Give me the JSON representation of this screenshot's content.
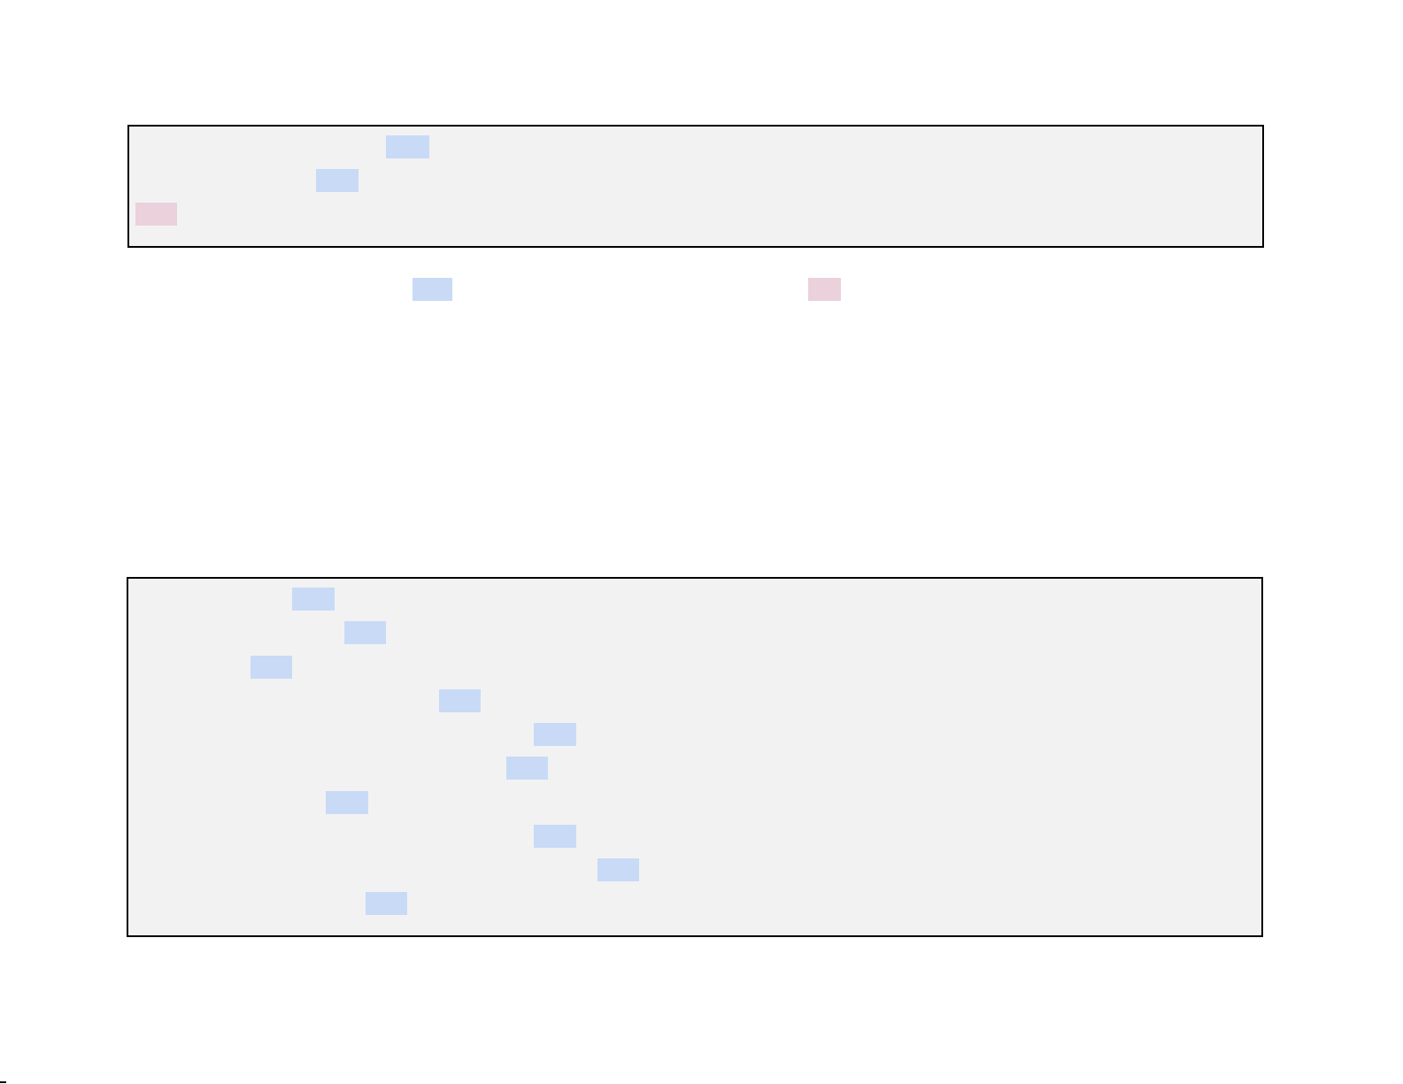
{
  "colors": {
    "page_background": "#ffffff",
    "panel_background": "#f2f2f2",
    "panel_border": "#000000",
    "highlight_blue": "#c8daf6",
    "highlight_pink": "#ead1dc"
  },
  "top_panel": {
    "highlights": [
      "blue",
      "blue",
      "pink"
    ]
  },
  "between_panels": {
    "highlights": [
      "blue",
      "pink"
    ]
  },
  "bottom_panel": {
    "highlights": [
      "blue",
      "blue",
      "blue",
      "blue",
      "blue",
      "blue",
      "blue",
      "blue",
      "blue",
      "blue"
    ]
  }
}
